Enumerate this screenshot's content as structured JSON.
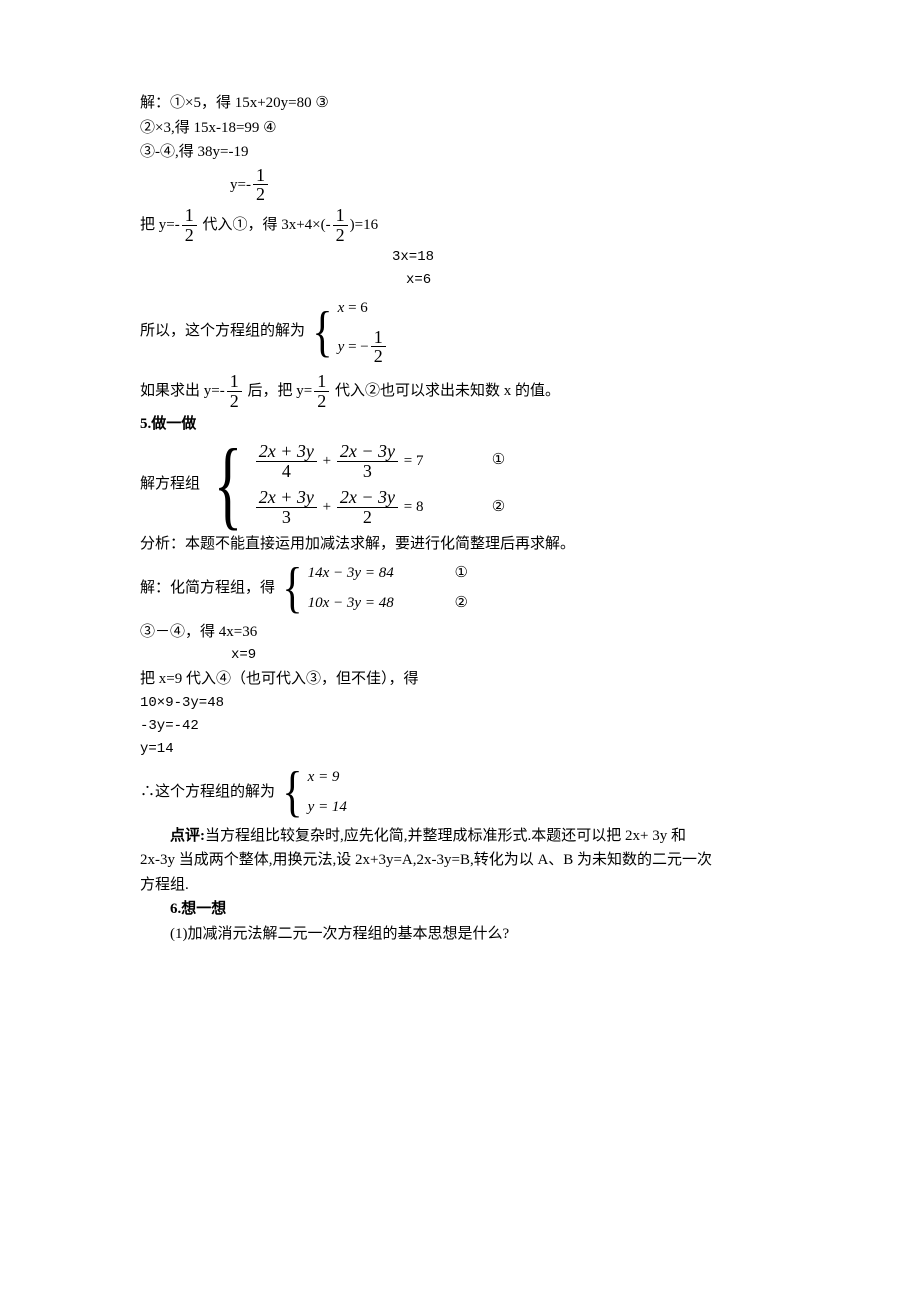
{
  "colors": {
    "text": "#000000",
    "background": "#ffffff",
    "rule": "#000000"
  },
  "typography": {
    "body_font": "SimSun / 宋体",
    "math_font": "Times New Roman",
    "mono_font": "Courier New",
    "body_size_pt": 11,
    "math_fraction_size_pt": 13
  },
  "content": {
    "l01": "解：①×5，得   15x+20y=80 ③",
    "l02": "②×3,得   15x-18=99 ④",
    "l03": "③-④,得  38y=-19",
    "l04_prefix": "y=-",
    "half_num": "1",
    "half_den": "2",
    "l05_a": "把 y=-",
    "l05_b": " 代入①，得 3x+4×(-",
    "l05_c": ")=16",
    "l06": "3x=18",
    "l07": "x=6",
    "l08_a": "所以，这个方程组的解为",
    "sol1_r1_a": "x",
    "sol1_r1_b": " = 6",
    "sol1_r2_a": "y",
    "sol1_r2_b": " = −",
    "l09_a": "如果求出 y=-",
    "l09_b": " 后，把 y=",
    "l09_c": " 代入②也可以求出未知数 x 的值。",
    "sec5": "5.做一做",
    "l10_a": "解方程组",
    "sys1_r1_t1n": "2x + 3y",
    "sys1_r1_t1d": "4",
    "sys1_r1_t2n": "2x − 3y",
    "sys1_r1_t2d": "3",
    "sys1_r1_rhs": " = 7",
    "sys1_r1_tag": "①",
    "sys1_r2_t1n": "2x + 3y",
    "sys1_r2_t1d": "3",
    "sys1_r2_t2n": "2x − 3y",
    "sys1_r2_t2d": "2",
    "sys1_r2_rhs": " = 8",
    "sys1_r2_tag": "②",
    "l11": "分析：本题不能直接运用加减法求解，要进行化简整理后再求解。",
    "l12_a": "解：化简方程组，得",
    "sys2_r1": "14x − 3y = 84",
    "sys2_r1_tag": "①",
    "sys2_r2": "10x − 3y = 48",
    "sys2_r2_tag": "②",
    "l13": "③－④，得 4x=36",
    "l14": "x=9",
    "l15": "把 x=9 代入④（也可代入③，但不佳），得",
    "l16": "10×9-3y=48",
    "l17": " -3y=-42",
    "l18": "  y=14",
    "l19_a": "∴这个方程组的解为",
    "sol2_r1": "x = 9",
    "sol2_r2": "y = 14",
    "l20": "点评:当方程组比较复杂时,应先化简,并整理成标准形式.本题还可以把 2x+ 3y 和",
    "l21": "2x-3y 当成两个整体,用换元法,设 2x+3y=A,2x-3y=B,转化为以 A、B 为未知数的二元一次",
    "l22": "方程组.",
    "sec6": "6.想一想",
    "l23": "(1)加减消元法解二元一次方程组的基本思想是什么?"
  }
}
